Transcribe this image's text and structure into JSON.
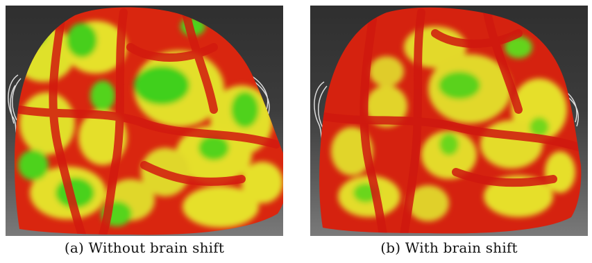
{
  "captions": {
    "a": "(a) Without brain shift",
    "b": "(b) With brain shift"
  },
  "colors": {
    "background_top": "#2f2f2f",
    "background_bottom": "#7a7a7a",
    "high": "#d91f12",
    "mid": "#e9e12a",
    "low": "#49d11b",
    "electrode_wire": "#dddddd"
  }
}
